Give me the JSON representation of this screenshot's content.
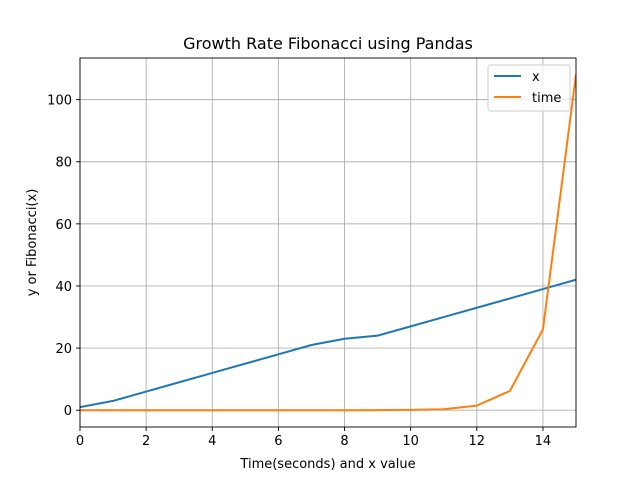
{
  "chart_data": {
    "type": "line",
    "title": "Growth Rate Fibonacci using Pandas",
    "xlabel": "Time(seconds) and x value",
    "ylabel": "y or Fibonacci(x)",
    "xlim": [
      0,
      15
    ],
    "ylim": [
      -5.4,
      113.4
    ],
    "xticks": [
      0,
      2,
      4,
      6,
      8,
      10,
      12,
      14
    ],
    "yticks": [
      0,
      20,
      40,
      60,
      80,
      100
    ],
    "grid": true,
    "legend_position": "top-right",
    "series": [
      {
        "name": "x",
        "color": "#1f77b4",
        "x": [
          0,
          1,
          2,
          3,
          4,
          5,
          6,
          7,
          8,
          9,
          10,
          11,
          12,
          13,
          14,
          15
        ],
        "values": [
          1,
          3,
          6,
          9,
          12,
          15,
          18,
          21,
          23,
          24,
          27,
          30,
          33,
          36,
          39,
          42
        ]
      },
      {
        "name": "time",
        "color": "#ff7f0e",
        "x": [
          0,
          1,
          2,
          3,
          4,
          5,
          6,
          7,
          8,
          9,
          10,
          11,
          12,
          13,
          14,
          15
        ],
        "values": [
          0,
          0,
          0,
          0,
          0,
          0,
          0,
          0,
          0,
          0.05,
          0.1,
          0.3,
          1.5,
          6.2,
          26,
          108
        ]
      }
    ]
  }
}
